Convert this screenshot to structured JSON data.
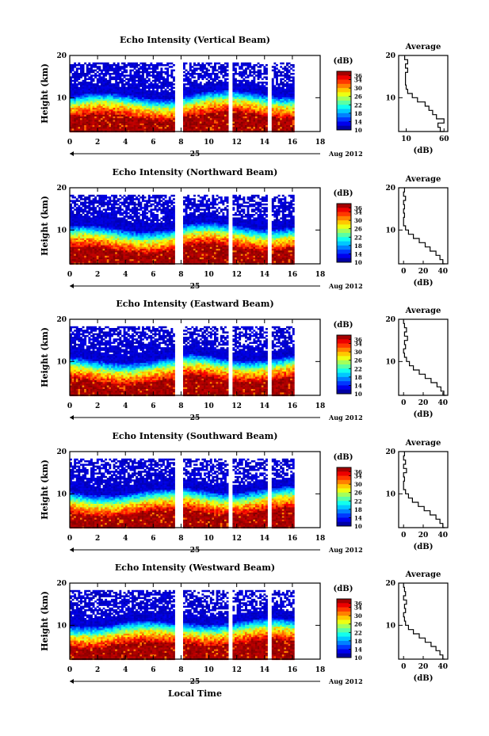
{
  "chart_data": [
    {
      "type": "heatmap",
      "title": "Echo Intensity (Vertical Beam)",
      "ylabel": "Height (km)",
      "ylim": [
        2,
        20
      ],
      "yticks": [
        "20",
        "10"
      ],
      "xlim": [
        0,
        18
      ],
      "xticks": [
        "0",
        "2",
        "4",
        "6",
        "8",
        "10",
        "12",
        "14",
        "16",
        "18"
      ],
      "date_label": "Aug 2012",
      "date_day": "25",
      "colorbar": {
        "label": "(dB)",
        "range": [
          10,
          38
        ],
        "ticks": [
          "36",
          "34",
          "30",
          "26",
          "22",
          "18",
          "14",
          "10"
        ]
      },
      "data_gaps_hours": [
        [
          7.5,
          8.0
        ],
        [
          11.3,
          11.6
        ],
        [
          14.2,
          14.5
        ],
        [
          16.0,
          18.0
        ]
      ],
      "profile": {
        "title": "Average",
        "xlabel": "(dB)",
        "xticks": [
          "10",
          "60"
        ],
        "xlim": [
          0,
          65
        ],
        "yticks": [
          "20",
          "10"
        ],
        "heights": [
          2,
          3,
          4,
          5,
          6,
          7,
          8,
          9,
          10,
          11,
          12,
          13,
          14,
          15,
          16,
          17,
          18,
          19,
          20
        ],
        "values": [
          60,
          55,
          52,
          60,
          50,
          45,
          40,
          35,
          25,
          18,
          12,
          10,
          9,
          9,
          9,
          12,
          9,
          12,
          8
        ]
      }
    },
    {
      "type": "heatmap",
      "title": "Echo Intensity (Northward Beam)",
      "ylabel": "Height (km)",
      "ylim": [
        2,
        20
      ],
      "yticks": [
        "20",
        "10"
      ],
      "xlim": [
        0,
        18
      ],
      "xticks": [
        "0",
        "2",
        "4",
        "6",
        "8",
        "10",
        "12",
        "14",
        "16",
        "18"
      ],
      "date_label": "Aug 2012",
      "date_day": "25",
      "colorbar": {
        "label": "(dB)",
        "range": [
          10,
          38
        ],
        "ticks": [
          "36",
          "34",
          "30",
          "26",
          "22",
          "18",
          "14",
          "10"
        ]
      },
      "data_gaps_hours": [
        [
          7.5,
          8.0
        ],
        [
          11.3,
          11.6
        ],
        [
          14.2,
          14.5
        ],
        [
          16.0,
          18.0
        ]
      ],
      "profile": {
        "title": "Average",
        "xlabel": "(dB)",
        "xticks": [
          "0",
          "20",
          "40"
        ],
        "xlim": [
          -5,
          45
        ],
        "yticks": [
          "20",
          "10"
        ],
        "heights": [
          2,
          3,
          4,
          5,
          6,
          7,
          8,
          9,
          10,
          11,
          12,
          13,
          14,
          15,
          16,
          17,
          18,
          19,
          20
        ],
        "values": [
          42,
          40,
          37,
          33,
          27,
          22,
          16,
          10,
          5,
          2,
          0,
          0,
          1,
          0,
          1,
          0,
          2,
          0,
          1
        ]
      }
    },
    {
      "type": "heatmap",
      "title": "Echo Intensity (Eastward Beam)",
      "ylabel": "Height (km)",
      "ylim": [
        2,
        20
      ],
      "yticks": [
        "20",
        "10"
      ],
      "xlim": [
        0,
        18
      ],
      "xticks": [
        "0",
        "2",
        "4",
        "6",
        "8",
        "10",
        "12",
        "14",
        "16",
        "18"
      ],
      "date_label": "Aug 2012",
      "date_day": "25",
      "colorbar": {
        "label": "(dB)",
        "range": [
          10,
          38
        ],
        "ticks": [
          "36",
          "34",
          "30",
          "26",
          "22",
          "18",
          "14",
          "10"
        ]
      },
      "data_gaps_hours": [
        [
          7.5,
          8.0
        ],
        [
          11.3,
          11.6
        ],
        [
          14.2,
          14.5
        ],
        [
          16.0,
          18.0
        ]
      ],
      "profile": {
        "title": "Average",
        "xlabel": "(dB)",
        "xticks": [
          "0",
          "20",
          "40"
        ],
        "xlim": [
          -5,
          45
        ],
        "yticks": [
          "20",
          "10"
        ],
        "heights": [
          2,
          3,
          4,
          5,
          6,
          7,
          8,
          9,
          10,
          11,
          12,
          13,
          14,
          15,
          16,
          17,
          18,
          19,
          20
        ],
        "values": [
          43,
          41,
          38,
          34,
          28,
          22,
          16,
          10,
          6,
          3,
          1,
          0,
          2,
          1,
          4,
          1,
          3,
          1,
          0
        ]
      }
    },
    {
      "type": "heatmap",
      "title": "Echo Intensity (Southward Beam)",
      "ylabel": "Height (km)",
      "ylim": [
        2,
        20
      ],
      "yticks": [
        "20",
        "10"
      ],
      "xlim": [
        0,
        18
      ],
      "xticks": [
        "0",
        "2",
        "4",
        "6",
        "8",
        "10",
        "12",
        "14",
        "16",
        "18"
      ],
      "date_label": "Aug 2012",
      "date_day": "25",
      "colorbar": {
        "label": "(dB)",
        "range": [
          10,
          38
        ],
        "ticks": [
          "36",
          "34",
          "30",
          "26",
          "22",
          "18",
          "14",
          "10"
        ]
      },
      "data_gaps_hours": [
        [
          7.5,
          8.0
        ],
        [
          11.3,
          11.6
        ],
        [
          14.2,
          14.5
        ],
        [
          16.0,
          18.0
        ]
      ],
      "profile": {
        "title": "Average",
        "xlabel": "(dB)",
        "xticks": [
          "0",
          "20",
          "40"
        ],
        "xlim": [
          -5,
          45
        ],
        "yticks": [
          "20",
          "10"
        ],
        "heights": [
          2,
          3,
          4,
          5,
          6,
          7,
          8,
          9,
          10,
          11,
          12,
          13,
          14,
          15,
          16,
          17,
          18,
          19,
          20
        ],
        "values": [
          42,
          40,
          37,
          33,
          27,
          21,
          15,
          9,
          5,
          2,
          0,
          0,
          1,
          0,
          3,
          0,
          2,
          0,
          1
        ]
      }
    },
    {
      "type": "heatmap",
      "title": "Echo Intensity (Westward Beam)",
      "ylabel": "Height (km)",
      "ylim": [
        2,
        20
      ],
      "yticks": [
        "20",
        "10"
      ],
      "xlim": [
        0,
        18
      ],
      "xticks": [
        "0",
        "2",
        "4",
        "6",
        "8",
        "10",
        "12",
        "14",
        "16",
        "18"
      ],
      "date_label": "Aug 2012",
      "date_day": "25",
      "colorbar": {
        "label": "(dB)",
        "range": [
          10,
          38
        ],
        "ticks": [
          "36",
          "34",
          "30",
          "26",
          "22",
          "18",
          "14",
          "10"
        ]
      },
      "data_gaps_hours": [
        [
          7.5,
          8.0
        ],
        [
          11.3,
          11.6
        ],
        [
          14.2,
          14.5
        ],
        [
          16.0,
          18.0
        ]
      ],
      "profile": {
        "title": "Average",
        "xlabel": "(dB)",
        "xticks": [
          "0",
          "20",
          "40"
        ],
        "xlim": [
          -5,
          45
        ],
        "yticks": [
          "20",
          "10"
        ],
        "heights": [
          2,
          3,
          4,
          5,
          6,
          7,
          8,
          9,
          10,
          11,
          12,
          13,
          14,
          15,
          16,
          17,
          18,
          19,
          20
        ],
        "values": [
          42,
          40,
          37,
          33,
          28,
          22,
          16,
          10,
          5,
          2,
          1,
          0,
          2,
          1,
          3,
          0,
          2,
          1,
          0
        ]
      }
    }
  ],
  "bottom_xlabel": "Local Time"
}
